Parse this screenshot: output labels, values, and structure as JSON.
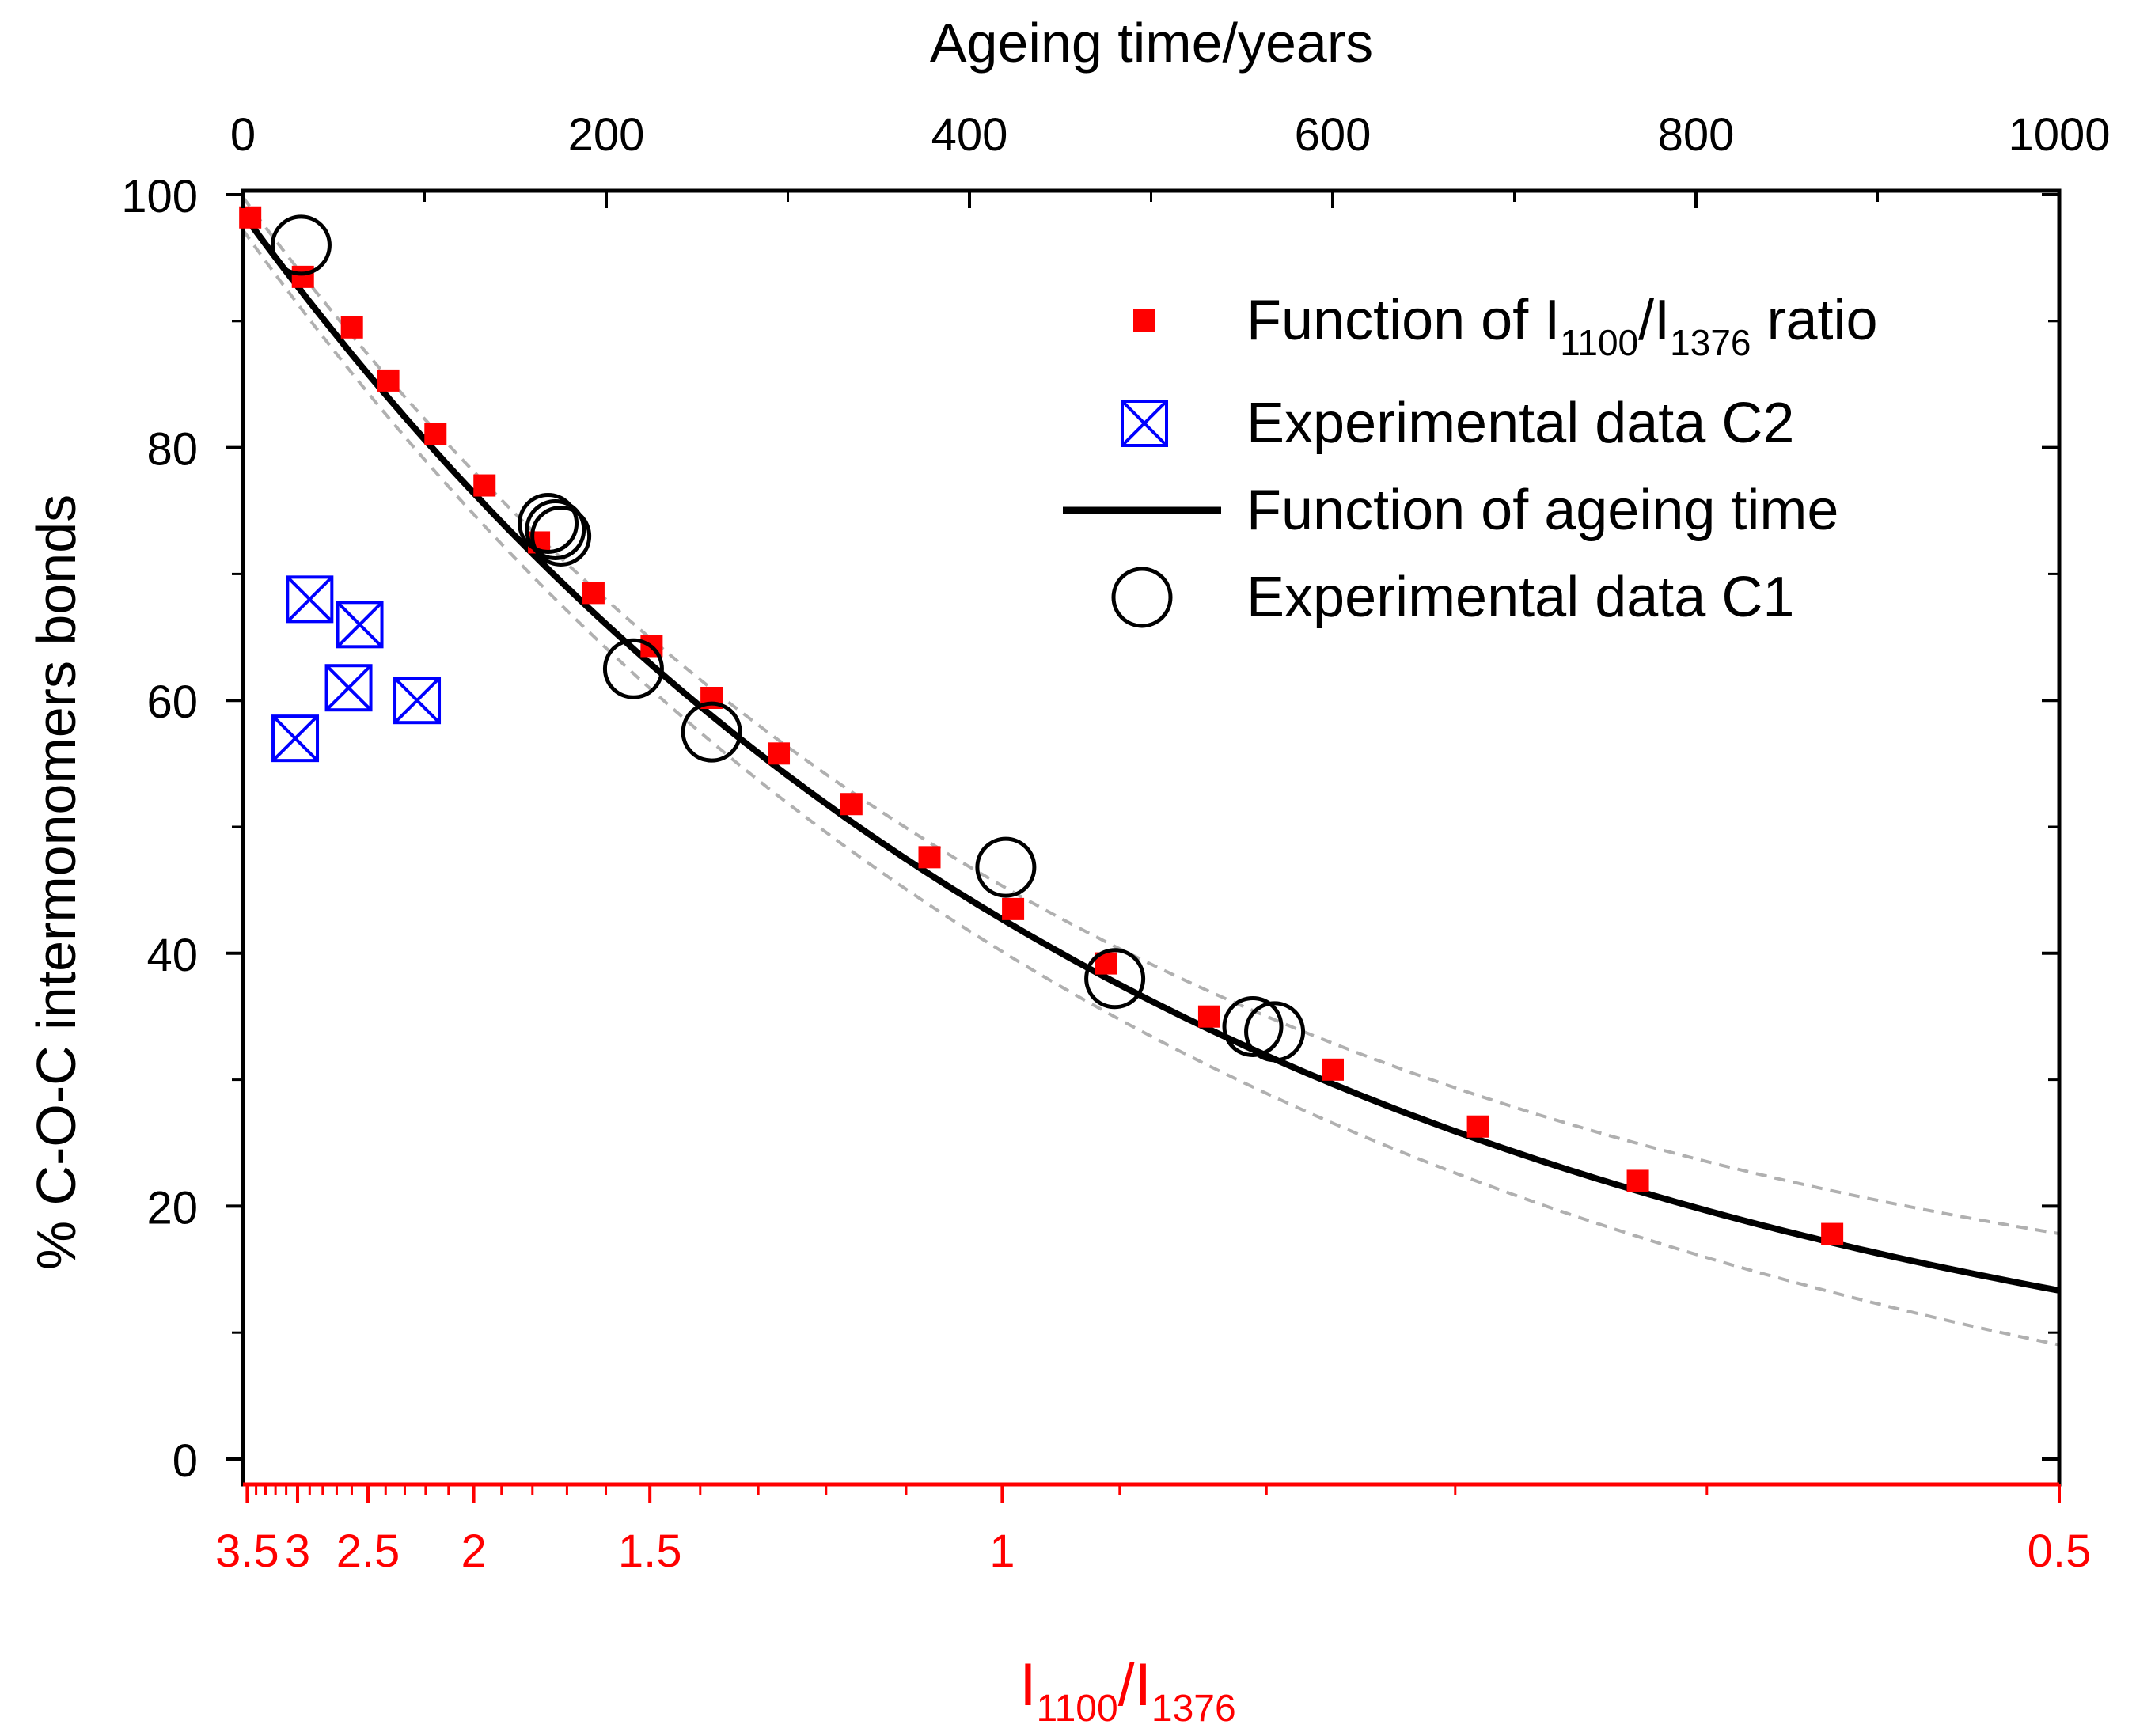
{
  "chart_data": {
    "type": "scatter",
    "ylabel": "% C-O-C intermonomers bonds",
    "top_xlabel": "Ageing time/years",
    "bottom_xlabel": {
      "base": "I",
      "sub1": "1100",
      "sep": "/I",
      "sub2": "1376"
    },
    "ylim": [
      0,
      100
    ],
    "top_xlim": [
      0,
      1000
    ],
    "bottom_x_scale": "reciprocal",
    "bottom_xlim": [
      3.55,
      0.5
    ],
    "y_ticks": [
      "0",
      "20",
      "40",
      "60",
      "80",
      "100"
    ],
    "top_x_ticks": [
      "0",
      "200",
      "400",
      "600",
      "800",
      "1000"
    ],
    "bottom_x_ticks": [
      "3.5",
      "3",
      "2.5",
      "2",
      "1.5",
      "1",
      "0.5"
    ],
    "colors": {
      "ratio_series": "#ff0000",
      "c2_series": "#0000ff",
      "fit_line": "#000000",
      "c1_series": "#000000",
      "confidence_band": "#b0b0b0",
      "bottom_axis": "#ff0000"
    },
    "legend": {
      "placement": "top-right",
      "items": [
        {
          "id": "ratio",
          "label_main": "Function of I",
          "sub1": "1100",
          "sep": "/I",
          "sub2": "1376",
          "label_tail": " ratio"
        },
        {
          "id": "c2",
          "label": "Experimental data C2"
        },
        {
          "id": "fit",
          "label": "Function of ageing time"
        },
        {
          "id": "c1",
          "label": "Experimental data C1"
        }
      ]
    },
    "fit_function": {
      "form": "exponential",
      "y0": 98.5,
      "decay_per_year": 0.002,
      "years": [
        0,
        1000
      ]
    },
    "series": [
      {
        "name": "Function of I1100/I1376 ratio",
        "x_axis": "ageing time (years)",
        "x": [
          4,
          33,
          60,
          80,
          106,
          133,
          163,
          193,
          225,
          258,
          295,
          335,
          378,
          424,
          475,
          532,
          600,
          680,
          768,
          875
        ],
        "y": [
          98.2,
          93.5,
          89.5,
          85.3,
          81.1,
          77.0,
          72.5,
          68.5,
          64.3,
          60.2,
          55.8,
          51.8,
          47.6,
          43.5,
          39.2,
          35.0,
          30.8,
          26.3,
          22.0,
          17.8
        ]
      },
      {
        "name": "Experimental data C2",
        "x_axis": "I1100/I1376",
        "x": [
          3.02,
          2.9,
          2.62,
          2.55,
          2.24
        ],
        "y": [
          57,
          68,
          61,
          66,
          60
        ]
      },
      {
        "name": "Experimental data C1",
        "x_axis": "ageing time (years)",
        "x": [
          32,
          168,
          172,
          175,
          215,
          258,
          420,
          480,
          556,
          568
        ],
        "y": [
          96,
          74,
          73.5,
          73,
          62.5,
          57.5,
          46.8,
          38,
          34.2,
          33.8
        ]
      }
    ]
  }
}
